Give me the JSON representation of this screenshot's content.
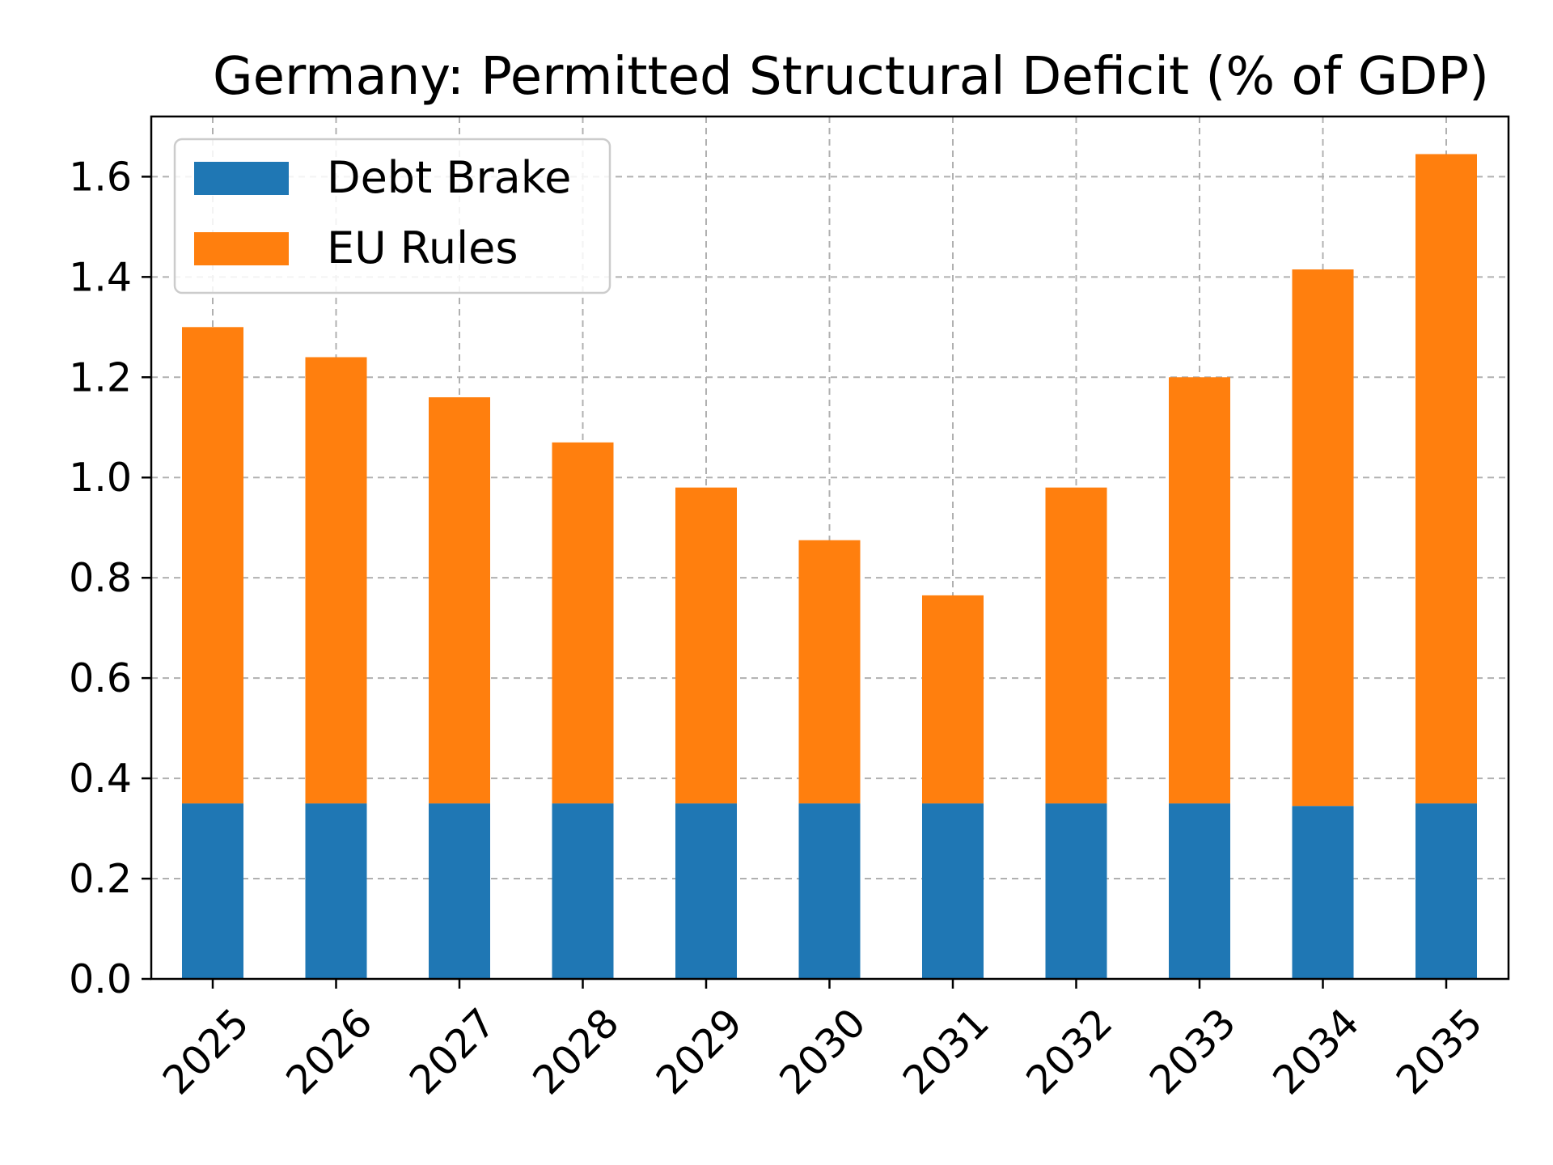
{
  "chart_data": {
    "type": "bar",
    "stacked": true,
    "title": "Germany: Permitted Structural Deficit (% of GDP)",
    "xlabel": "",
    "ylabel": "",
    "categories": [
      "2025",
      "2026",
      "2027",
      "2028",
      "2029",
      "2030",
      "2031",
      "2032",
      "2033",
      "2034",
      "2035"
    ],
    "series": [
      {
        "name": "Debt Brake",
        "color": "#1f77b4",
        "values": [
          0.35,
          0.35,
          0.35,
          0.35,
          0.35,
          0.35,
          0.35,
          0.35,
          0.35,
          0.345,
          0.35
        ]
      },
      {
        "name": "EU Rules",
        "color": "#ff7f0e",
        "values": [
          0.95,
          0.89,
          0.81,
          0.72,
          0.63,
          0.525,
          0.415,
          0.63,
          0.85,
          1.07,
          1.295
        ]
      }
    ],
    "ylim": [
      0,
      1.72
    ],
    "yticks": [
      "0.0",
      "0.2",
      "0.4",
      "0.6",
      "0.8",
      "1.0",
      "1.2",
      "1.4",
      "1.6"
    ],
    "grid": true,
    "legend_position": "top-left"
  }
}
